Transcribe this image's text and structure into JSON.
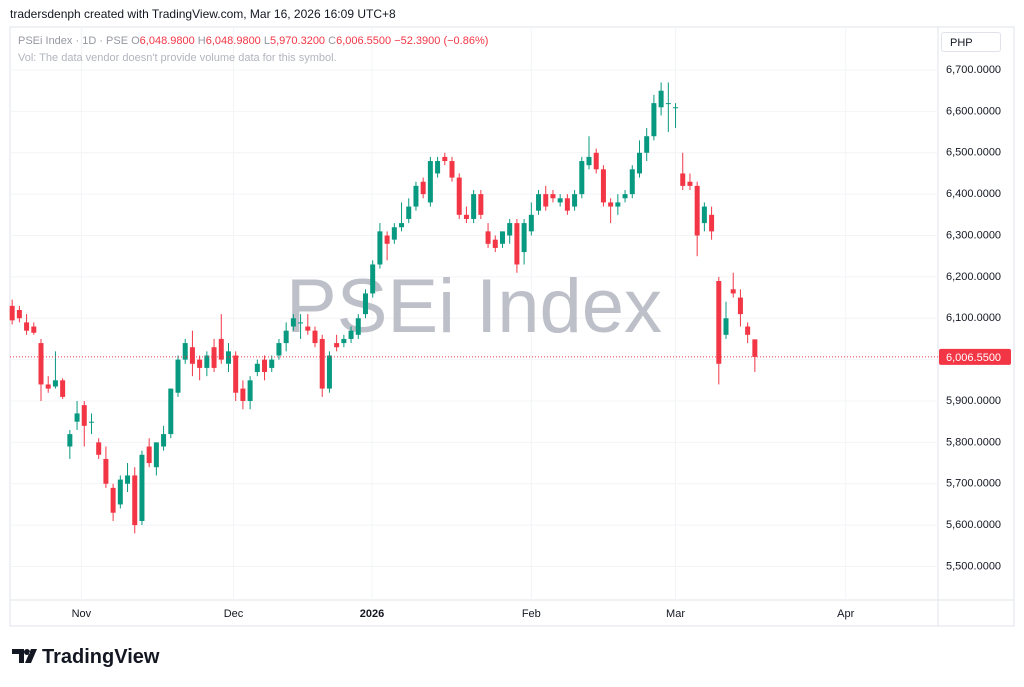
{
  "header": {
    "text": "tradersdenph created with TradingView.com, Mar 16, 2026 16:09 UTC+8"
  },
  "legend": {
    "symbol": "PSEi Index · 1D · PSE",
    "open_label": "O",
    "open": "6,048.9800",
    "high_label": "H",
    "high": "6,048.9800",
    "low_label": "L",
    "low": "5,970.3200",
    "close_label": "C",
    "close": "6,006.5500",
    "change": "−52.3900 (−0.86%)",
    "volume_note": "Vol: The data vendor doesn't provide volume data for this symbol."
  },
  "currency": "PHP",
  "footer": {
    "logo": "TradingView"
  },
  "chart_data": {
    "type": "candlestick",
    "watermark": "PSEi Index",
    "up_color": "#089981",
    "down_color": "#f23645",
    "ylim": [
      5419,
      6804
    ],
    "yticks": [
      {
        "value": 5500,
        "label": "5,500.0000"
      },
      {
        "value": 5600,
        "label": "5,600.0000"
      },
      {
        "value": 5700,
        "label": "5,700.0000"
      },
      {
        "value": 5800,
        "label": "5,800.0000"
      },
      {
        "value": 5900,
        "label": "5,900.0000"
      },
      {
        "value": 6000,
        "label": "6,000.0000"
      },
      {
        "value": 6100,
        "label": "6,100.0000"
      },
      {
        "value": 6200,
        "label": "6,200.0000"
      },
      {
        "value": 6300,
        "label": "6,300.0000"
      },
      {
        "value": 6400,
        "label": "6,400.0000"
      },
      {
        "value": 6500,
        "label": "6,500.0000"
      },
      {
        "value": 6600,
        "label": "6,600.0000"
      },
      {
        "value": 6700,
        "label": "6,700.0000"
      }
    ],
    "xlim": [
      -0.3,
      128.4
    ],
    "xticks": [
      {
        "value": 9.6,
        "label": "Nov"
      },
      {
        "value": 30.7,
        "label": "Dec"
      },
      {
        "value": 49.9,
        "label": "2026"
      },
      {
        "value": 72,
        "label": "Feb"
      },
      {
        "value": 92,
        "label": "Mar"
      },
      {
        "value": 115.6,
        "label": "Apr"
      }
    ],
    "last_price": {
      "value": 6006.55,
      "label": "6,006.5500"
    },
    "open": [
      6130,
      6120,
      6090,
      6080,
      6040,
      5940,
      5935,
      5950,
      5790,
      5850,
      5890,
      5850,
      5800,
      5760,
      5690,
      5650,
      5700,
      5720,
      5610,
      5790,
      5740,
      5790,
      5820,
      5920,
      6000,
      6030,
      6000,
      5980,
      6030,
      6050,
      5990,
      6010,
      5930,
      5900,
      5970,
      6000,
      5980,
      6010,
      6040,
      6080,
      6090,
      6080,
      6070,
      6050,
      5930,
      6040,
      6040,
      6050,
      6060,
      6110,
      6160,
      6230,
      6300,
      6290,
      6320,
      6340,
      6370,
      6430,
      6380,
      6450,
      6490,
      6480,
      6440,
      6350,
      6340,
      6400,
      6310,
      6290,
      6280,
      6300,
      6330,
      6260,
      6310,
      6360,
      6400,
      6400,
      6380,
      6390,
      6370,
      6400,
      6470,
      6500,
      6460,
      6380,
      6370,
      6390,
      6400,
      6450,
      6500,
      6540,
      6610,
      6620,
      6610,
      6450,
      6430,
      6420,
      6330,
      6350,
      6190,
      6060,
      6170,
      6150,
      6080,
      6048.98
    ],
    "high": [
      6145,
      6130,
      6110,
      6090,
      6050,
      5960,
      6020,
      5955,
      5830,
      5900,
      5900,
      5870,
      5810,
      5790,
      5700,
      5720,
      5750,
      5740,
      5780,
      5810,
      5800,
      5840,
      5930,
      6010,
      6050,
      6070,
      6010,
      6020,
      6050,
      6110,
      6040,
      6020,
      5950,
      5960,
      6000,
      6010,
      6010,
      6050,
      6090,
      6110,
      6110,
      6110,
      6080,
      6060,
      6020,
      6060,
      6060,
      6080,
      6110,
      6170,
      6240,
      6330,
      6310,
      6330,
      6380,
      6390,
      6430,
      6440,
      6490,
      6490,
      6500,
      6490,
      6450,
      6370,
      6410,
      6410,
      6330,
      6300,
      6310,
      6340,
      6340,
      6340,
      6380,
      6410,
      6420,
      6410,
      6400,
      6400,
      6410,
      6490,
      6540,
      6510,
      6470,
      6390,
      6400,
      6410,
      6470,
      6530,
      6560,
      6640,
      6670,
      6670,
      6620,
      6500,
      6450,
      6430,
      6380,
      6370,
      6200,
      6140,
      6210,
      6170,
      6090,
      6048.98
    ],
    "low": [
      6085,
      6090,
      6060,
      6060,
      5900,
      5920,
      5930,
      5905,
      5760,
      5830,
      5790,
      5820,
      5760,
      5690,
      5610,
      5640,
      5680,
      5580,
      5600,
      5740,
      5720,
      5780,
      5810,
      5910,
      5990,
      5960,
      5950,
      5960,
      5970,
      5990,
      5970,
      5900,
      5880,
      5880,
      5960,
      5950,
      5970,
      6000,
      6020,
      6070,
      6050,
      6060,
      6030,
      5910,
      5920,
      6020,
      6030,
      6040,
      6050,
      6100,
      6150,
      6220,
      6240,
      6280,
      6310,
      6330,
      6360,
      6390,
      6370,
      6440,
      6470,
      6430,
      6340,
      6330,
      6330,
      6340,
      6270,
      6260,
      6270,
      6280,
      6210,
      6230,
      6300,
      6350,
      6360,
      6380,
      6370,
      6350,
      6360,
      6390,
      6460,
      6450,
      6370,
      6330,
      6350,
      6380,
      6390,
      6440,
      6480,
      6530,
      6590,
      6550,
      6560,
      6410,
      6410,
      6250,
      6310,
      6290,
      5940,
      6050,
      6150,
      6080,
      6040,
      5970.32
    ],
    "close": [
      6095,
      6100,
      6070,
      6065,
      5940,
      5930,
      5950,
      5910,
      5820,
      5870,
      5840,
      5850,
      5770,
      5700,
      5630,
      5710,
      5720,
      5600,
      5770,
      5750,
      5800,
      5820,
      5930,
      6000,
      6040,
      5990,
      5980,
      6010,
      5980,
      6000,
      6020,
      5920,
      5900,
      5950,
      5990,
      5970,
      6000,
      6040,
      6070,
      6100,
      6090,
      6070,
      6040,
      5930,
      6010,
      6030,
      6050,
      6070,
      6100,
      6160,
      6230,
      6310,
      6280,
      6320,
      6330,
      6370,
      6420,
      6400,
      6480,
      6480,
      6480,
      6440,
      6350,
      6340,
      6400,
      6350,
      6280,
      6270,
      6310,
      6330,
      6230,
      6330,
      6350,
      6400,
      6370,
      6390,
      6390,
      6360,
      6400,
      6480,
      6490,
      6460,
      6380,
      6370,
      6380,
      6400,
      6460,
      6500,
      6540,
      6620,
      6650,
      6620,
      6610,
      6420,
      6420,
      6300,
      6370,
      6310,
      5990,
      6100,
      6160,
      6110,
      6060,
      6006.55
    ]
  }
}
